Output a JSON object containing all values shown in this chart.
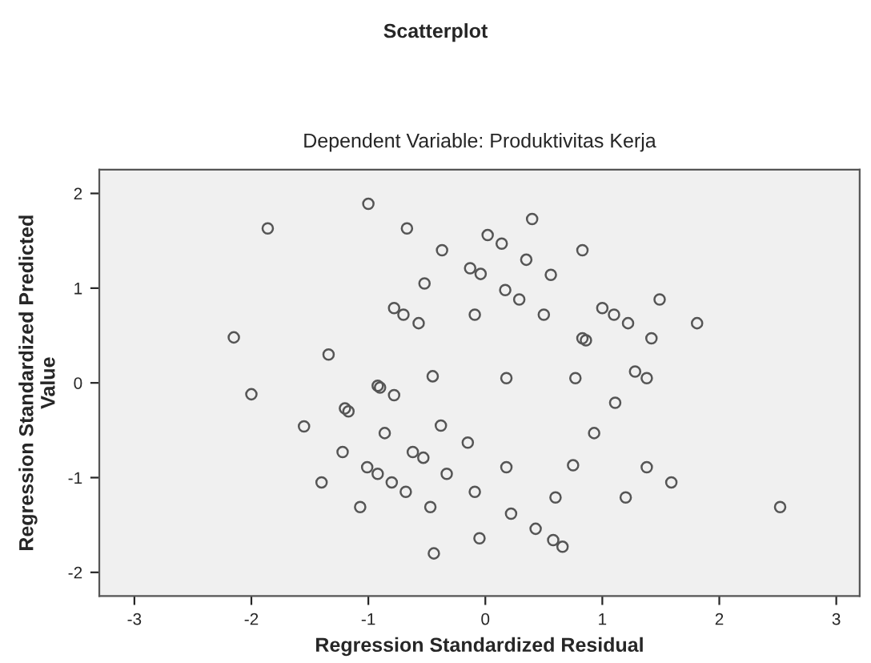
{
  "chart_data": {
    "type": "scatter",
    "title": "Scatterplot",
    "subtitle": "Dependent Variable: Produktivitas Kerja",
    "xlabel": "Regression Standardized Residual",
    "ylabel": "Regression Standardized Predicted\nValue",
    "x": [
      -1.0,
      -1.86,
      -0.67,
      0.02,
      -0.37,
      -0.13,
      -0.04,
      -0.52,
      -0.78,
      -0.7,
      -0.57,
      -0.09,
      -2.15,
      -1.34,
      -0.92,
      -0.9,
      -0.78,
      -0.45,
      -2.0,
      -1.2,
      -1.17,
      -1.55,
      -0.86,
      -0.38,
      0.4,
      0.14,
      0.35,
      0.83,
      0.56,
      0.17,
      0.29,
      0.5,
      1.0,
      1.1,
      1.22,
      1.49,
      1.81,
      1.42,
      0.83,
      0.86,
      0.18,
      0.77,
      1.28,
      1.38,
      1.11,
      0.93,
      -0.15,
      -1.22,
      -0.62,
      -0.53,
      -1.01,
      -0.92,
      -0.33,
      -1.4,
      -0.8,
      -0.68,
      -0.09,
      -1.07,
      -0.47,
      -0.05,
      -0.44,
      0.18,
      0.75,
      1.38,
      1.59,
      0.6,
      1.2,
      2.52,
      0.22,
      0.43,
      0.58,
      0.66
    ],
    "series": [
      {
        "color": "#555555",
        "values": [
          1.89,
          1.63,
          1.63,
          1.56,
          1.4,
          1.21,
          1.15,
          1.05,
          0.79,
          0.72,
          0.63,
          0.72,
          0.48,
          0.3,
          -0.03,
          -0.05,
          -0.13,
          0.07,
          -0.12,
          -0.27,
          -0.3,
          -0.46,
          -0.53,
          -0.45,
          1.73,
          1.47,
          1.3,
          1.4,
          1.14,
          0.98,
          0.88,
          0.72,
          0.79,
          0.72,
          0.63,
          0.88,
          0.63,
          0.47,
          0.47,
          0.45,
          0.05,
          0.05,
          0.12,
          0.05,
          -0.21,
          -0.53,
          -0.63,
          -0.73,
          -0.73,
          -0.79,
          -0.89,
          -0.96,
          -0.96,
          -1.05,
          -1.05,
          -1.15,
          -1.15,
          -1.31,
          -1.31,
          -1.64,
          -1.8,
          -0.89,
          -0.87,
          -0.89,
          -1.05,
          -1.21,
          -1.21,
          -1.31,
          -1.38,
          -1.54,
          -1.66,
          -1.73
        ]
      }
    ],
    "xlim": [
      -3.3,
      3.2
    ],
    "ylim": [
      -2.25,
      2.25
    ],
    "xticks": [
      -3,
      -2,
      -1,
      0,
      1,
      2,
      3
    ],
    "yticks": [
      -2,
      -1,
      0,
      1,
      2
    ],
    "marker": "circle",
    "grid": false
  }
}
